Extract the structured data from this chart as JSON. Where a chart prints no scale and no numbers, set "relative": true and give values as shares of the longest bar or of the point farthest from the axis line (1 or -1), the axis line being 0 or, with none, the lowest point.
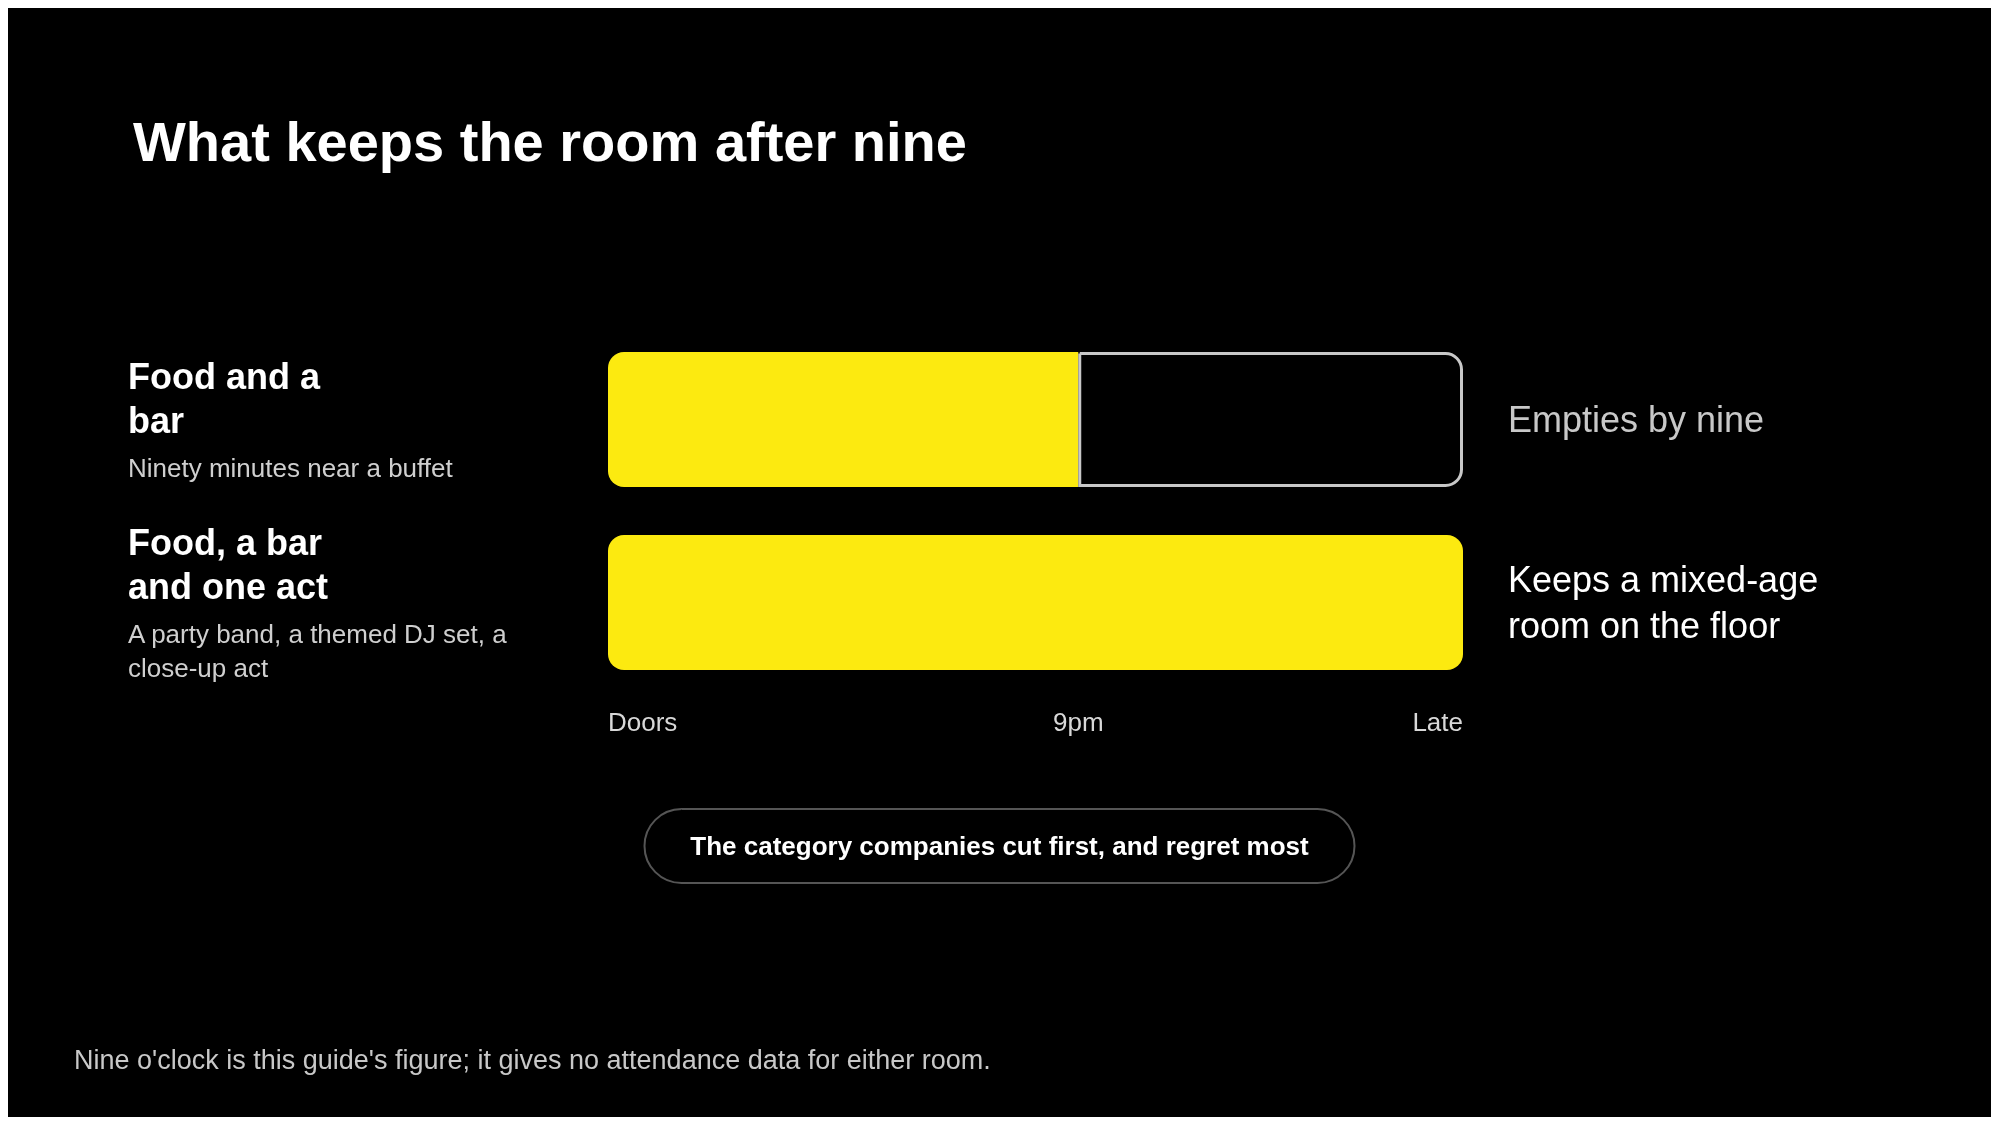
{
  "chart_data": {
    "type": "bar",
    "orientation": "horizontal",
    "stacked": true,
    "relative": true,
    "title": "What keeps the room after nine",
    "categories": [
      "Food and a bar",
      "Food, a bar and one act"
    ],
    "series": [
      {
        "color": "#fcea10",
        "values": [
          0.55,
          1
        ]
      },
      {
        "color": "#000000",
        "values": [
          0.45,
          null
        ]
      }
    ],
    "value_labels": [
      "Empties by nine",
      "Keeps a mixed-age room on the floor"
    ],
    "annotations": [
      "Doors",
      "9pm",
      "Late",
      "Ninety minutes near a buffet",
      "A party band, a themed DJ set, a close-up act",
      "The category companies cut first, and regret most",
      "Nine o'clock is this guide's figure; it gives no attendance data for either room."
    ]
  }
}
